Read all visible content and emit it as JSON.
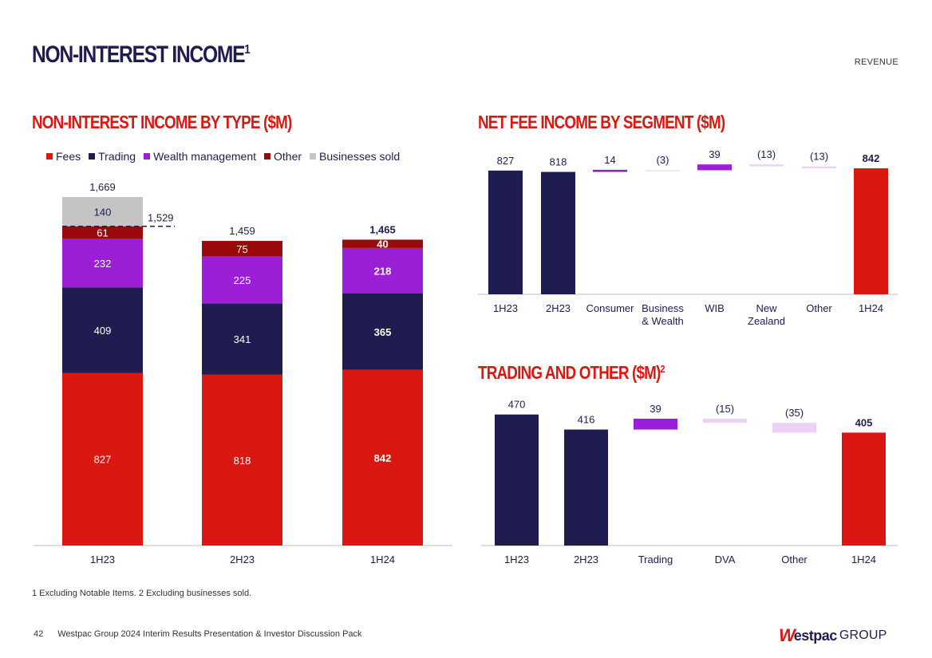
{
  "header": {
    "title": "NON-INTEREST INCOME",
    "title_sup": "1",
    "section": "REVENUE"
  },
  "colors": {
    "fees": "#da1710",
    "trading": "#1f1c4f",
    "wealth": "#9b1fd6",
    "other": "#9b0a0a",
    "sold": "#c4c4c4",
    "consumer": "#8a1ccf",
    "business": "#f1e6f3",
    "wib": "#9b1fd6",
    "nz": "#ecd2f5",
    "other_light": "#ecd2f5",
    "dva": "#ecd2f5"
  },
  "footnote": "1 Excluding Notable Items. 2 Excluding businesses sold.",
  "footer": {
    "page_number": "42",
    "text": "Westpac Group 2024 Interim Results Presentation & Investor Discussion Pack"
  },
  "logo": {
    "mark": "W",
    "word": "estpac",
    "group": "GROUP"
  },
  "chart_data": [
    {
      "id": "by_type",
      "type": "bar",
      "stacked": true,
      "title": "NON-INTEREST INCOME BY TYPE ($M)",
      "categories": [
        "1H23",
        "2H23",
        "1H24"
      ],
      "series": [
        {
          "name": "Fees",
          "color_key": "fees",
          "values": [
            827,
            818,
            842
          ],
          "labels": [
            "827",
            "818",
            "842"
          ]
        },
        {
          "name": "Trading",
          "color_key": "trading",
          "values": [
            409,
            341,
            365
          ],
          "labels": [
            "409",
            "341",
            "365"
          ]
        },
        {
          "name": "Wealth management",
          "color_key": "wealth",
          "values": [
            232,
            225,
            218
          ],
          "labels": [
            "232",
            "225",
            "218"
          ]
        },
        {
          "name": "Other",
          "color_key": "other",
          "values": [
            61,
            75,
            40
          ],
          "labels": [
            "61",
            "75",
            "40"
          ]
        },
        {
          "name": "Businesses sold",
          "color_key": "sold",
          "values": [
            140,
            0,
            0
          ],
          "labels": [
            "140",
            "",
            ""
          ]
        }
      ],
      "totals": [
        "1,669",
        "1,459",
        "1,465"
      ],
      "reference_line": {
        "value": 1529,
        "label": "1,529"
      },
      "legend_position": "top",
      "ylim": [
        0,
        1669
      ]
    },
    {
      "id": "fee_segment",
      "type": "bar",
      "waterfall": true,
      "title": "NET FEE INCOME BY SEGMENT ($M)",
      "categories": [
        "1H23",
        "2H23",
        "Consumer",
        "Business & Wealth",
        "WIB",
        "New Zealand",
        "Other",
        "1H24"
      ],
      "x_label_lines": [
        [
          "1H23"
        ],
        [
          "2H23"
        ],
        [
          "Consumer"
        ],
        [
          "Business",
          "& Wealth"
        ],
        [
          "WIB"
        ],
        [
          "New",
          "Zealand"
        ],
        [
          "Other"
        ],
        [
          "1H24"
        ]
      ],
      "values": [
        827,
        818,
        14,
        -3,
        39,
        -13,
        -13,
        842
      ],
      "labels": [
        "827",
        "818",
        "14",
        "(3)",
        "39",
        "(13)",
        "(13)",
        "842"
      ],
      "kinds": [
        "total",
        "total",
        "delta",
        "delta",
        "delta",
        "delta",
        "delta",
        "total"
      ],
      "color_keys": [
        "trading",
        "trading",
        "consumer",
        "business",
        "wib",
        "nz",
        "other_light",
        "fees"
      ],
      "bold_labels": [
        false,
        false,
        false,
        false,
        false,
        false,
        false,
        true
      ],
      "ylim": [
        0,
        842
      ]
    },
    {
      "id": "trading_other",
      "type": "bar",
      "waterfall": true,
      "title": "TRADING AND OTHER ($M)",
      "title_sup": "2",
      "categories": [
        "1H23",
        "2H23",
        "Trading",
        "DVA",
        "Other",
        "1H24"
      ],
      "x_label_lines": [
        [
          "1H23"
        ],
        [
          "2H23"
        ],
        [
          "Trading"
        ],
        [
          "DVA"
        ],
        [
          "Other"
        ],
        [
          "1H24"
        ]
      ],
      "values": [
        470,
        416,
        39,
        -15,
        -35,
        405
      ],
      "labels": [
        "470",
        "416",
        "39",
        "(15)",
        "(35)",
        "405"
      ],
      "kinds": [
        "total",
        "total",
        "delta",
        "delta",
        "delta",
        "total"
      ],
      "color_keys": [
        "trading",
        "trading",
        "wealth",
        "dva",
        "dva",
        "fees"
      ],
      "bold_labels": [
        false,
        false,
        false,
        false,
        false,
        true
      ],
      "ylim": [
        0,
        470
      ]
    }
  ]
}
